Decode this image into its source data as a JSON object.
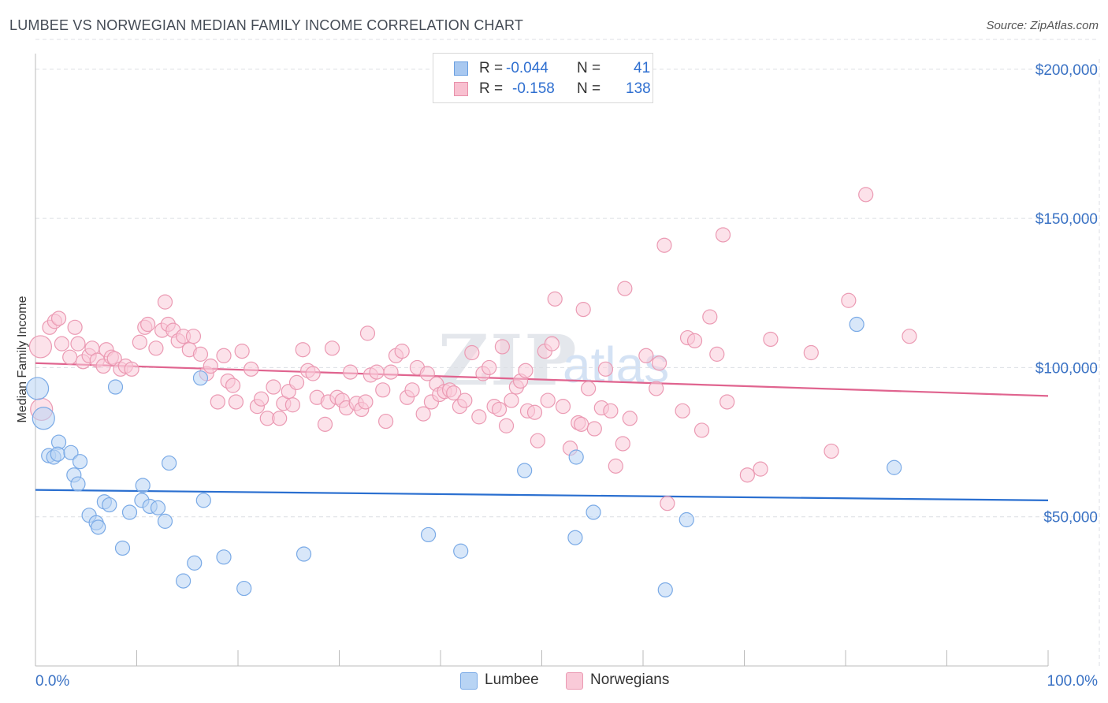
{
  "title": "LUMBEE VS NORWEGIAN MEDIAN FAMILY INCOME CORRELATION CHART",
  "source": "Source: ZipAtlas.com",
  "watermark": {
    "zip": "ZIP",
    "atlas": "atlas"
  },
  "legend": {
    "rows": [
      {
        "r_label": "R =",
        "r_value": "-0.044",
        "n_label": "N =",
        "n_value": "41",
        "color": "#a8c8f0",
        "border": "#6a9fe0"
      },
      {
        "r_label": "R =",
        "r_value": "-0.158",
        "n_label": "N =",
        "n_value": "138",
        "color": "#f8c0d0",
        "border": "#e890aa"
      }
    ]
  },
  "bottom_legend": [
    {
      "label": "Lumbee",
      "color": "#b8d4f4",
      "border": "#7aaae6"
    },
    {
      "label": "Norwegians",
      "color": "#f9cad8",
      "border": "#eb9ab3"
    }
  ],
  "chart_data": {
    "type": "scatter",
    "title": "LUMBEE VS NORWEGIAN MEDIAN FAMILY INCOME CORRELATION CHART",
    "xlabel": "",
    "ylabel": "Median Family Income",
    "xlim": [
      0,
      100
    ],
    "ylim": [
      0,
      210000
    ],
    "x_tick_labels": [
      "0.0%",
      "100.0%"
    ],
    "y_ticks": [
      50000,
      100000,
      150000,
      200000
    ],
    "y_tick_labels": [
      "$50,000",
      "$100,000",
      "$150,000",
      "$200,000"
    ],
    "grid": true,
    "legend_position": "top-center",
    "series": [
      {
        "name": "Lumbee",
        "color": "#7aaae6",
        "fill": "#b8d4f4",
        "trend": [
          [
            0,
            59000
          ],
          [
            100,
            55500
          ]
        ],
        "points": [
          [
            0.2,
            93000
          ],
          [
            0.8,
            83000
          ],
          [
            1.3,
            70500
          ],
          [
            1.8,
            70000
          ],
          [
            2.3,
            75000
          ],
          [
            2.2,
            71000
          ],
          [
            3.5,
            71500
          ],
          [
            3.8,
            64000
          ],
          [
            4.4,
            68500
          ],
          [
            4.2,
            61000
          ],
          [
            5.3,
            50500
          ],
          [
            6.0,
            48000
          ],
          [
            6.2,
            46500
          ],
          [
            6.8,
            55000
          ],
          [
            7.3,
            54000
          ],
          [
            7.9,
            93500
          ],
          [
            8.6,
            39500
          ],
          [
            9.3,
            51500
          ],
          [
            10.6,
            60500
          ],
          [
            10.5,
            55500
          ],
          [
            11.3,
            53500
          ],
          [
            12.1,
            53000
          ],
          [
            12.8,
            48500
          ],
          [
            13.2,
            68000
          ],
          [
            14.6,
            28500
          ],
          [
            15.7,
            34500
          ],
          [
            16.3,
            96500
          ],
          [
            16.6,
            55500
          ],
          [
            18.6,
            36500
          ],
          [
            20.6,
            26000
          ],
          [
            26.5,
            37500
          ],
          [
            38.8,
            44000
          ],
          [
            42.0,
            38500
          ],
          [
            48.3,
            65500
          ],
          [
            53.4,
            70000
          ],
          [
            55.1,
            51500
          ],
          [
            53.3,
            43000
          ],
          [
            62.2,
            25500
          ],
          [
            64.3,
            49000
          ],
          [
            81.1,
            114500
          ],
          [
            84.8,
            66500
          ]
        ]
      },
      {
        "name": "Norwegians",
        "color": "#eb9ab3",
        "fill": "#f9cad8",
        "trend": [
          [
            0,
            101500
          ],
          [
            100,
            90500
          ]
        ],
        "points": [
          [
            0.5,
            107000
          ],
          [
            0.6,
            86000
          ],
          [
            1.4,
            113500
          ],
          [
            1.9,
            115500
          ],
          [
            2.3,
            116500
          ],
          [
            2.6,
            108000
          ],
          [
            3.4,
            103500
          ],
          [
            3.9,
            113500
          ],
          [
            4.2,
            108000
          ],
          [
            4.7,
            102000
          ],
          [
            5.3,
            104000
          ],
          [
            5.6,
            106500
          ],
          [
            6.1,
            102500
          ],
          [
            6.7,
            100500
          ],
          [
            7.0,
            106000
          ],
          [
            7.5,
            103500
          ],
          [
            7.8,
            103000
          ],
          [
            8.4,
            99500
          ],
          [
            8.9,
            100500
          ],
          [
            9.5,
            99500
          ],
          [
            10.3,
            108500
          ],
          [
            10.8,
            113500
          ],
          [
            11.1,
            114500
          ],
          [
            11.9,
            106500
          ],
          [
            12.5,
            112500
          ],
          [
            12.8,
            122000
          ],
          [
            13.1,
            114500
          ],
          [
            13.6,
            112500
          ],
          [
            14.1,
            109000
          ],
          [
            14.6,
            110500
          ],
          [
            15.2,
            106000
          ],
          [
            15.6,
            110500
          ],
          [
            16.3,
            104500
          ],
          [
            16.9,
            98000
          ],
          [
            17.3,
            100500
          ],
          [
            18.0,
            88500
          ],
          [
            18.6,
            104000
          ],
          [
            19.0,
            95500
          ],
          [
            19.5,
            94000
          ],
          [
            19.8,
            88500
          ],
          [
            20.4,
            105500
          ],
          [
            21.3,
            99500
          ],
          [
            21.9,
            87000
          ],
          [
            22.3,
            89500
          ],
          [
            22.9,
            83000
          ],
          [
            23.5,
            93500
          ],
          [
            24.1,
            83000
          ],
          [
            24.5,
            88000
          ],
          [
            25.0,
            92000
          ],
          [
            25.4,
            87500
          ],
          [
            25.8,
            95000
          ],
          [
            26.4,
            106000
          ],
          [
            26.9,
            99000
          ],
          [
            27.4,
            98000
          ],
          [
            27.8,
            90000
          ],
          [
            28.6,
            81000
          ],
          [
            28.9,
            88500
          ],
          [
            29.3,
            106500
          ],
          [
            29.8,
            90000
          ],
          [
            30.3,
            89000
          ],
          [
            30.7,
            86500
          ],
          [
            31.1,
            98500
          ],
          [
            31.7,
            88000
          ],
          [
            32.2,
            86000
          ],
          [
            32.6,
            88500
          ],
          [
            32.8,
            111500
          ],
          [
            33.1,
            97500
          ],
          [
            33.7,
            98500
          ],
          [
            34.3,
            92500
          ],
          [
            34.6,
            82000
          ],
          [
            35.1,
            98500
          ],
          [
            35.6,
            104000
          ],
          [
            36.2,
            105500
          ],
          [
            36.7,
            90000
          ],
          [
            37.2,
            92500
          ],
          [
            37.7,
            100000
          ],
          [
            38.3,
            84500
          ],
          [
            38.7,
            98000
          ],
          [
            39.1,
            88500
          ],
          [
            39.6,
            94500
          ],
          [
            39.9,
            91000
          ],
          [
            40.4,
            92000
          ],
          [
            40.9,
            92500
          ],
          [
            41.3,
            91500
          ],
          [
            41.9,
            87000
          ],
          [
            42.4,
            89000
          ],
          [
            43.1,
            105000
          ],
          [
            43.8,
            83500
          ],
          [
            44.2,
            98000
          ],
          [
            44.8,
            100000
          ],
          [
            45.3,
            87000
          ],
          [
            45.8,
            86000
          ],
          [
            46.1,
            107000
          ],
          [
            46.5,
            80500
          ],
          [
            47.0,
            89000
          ],
          [
            47.5,
            93500
          ],
          [
            47.9,
            95500
          ],
          [
            48.4,
            99000
          ],
          [
            48.6,
            85500
          ],
          [
            49.3,
            85000
          ],
          [
            49.6,
            75500
          ],
          [
            50.3,
            105500
          ],
          [
            50.6,
            89000
          ],
          [
            51.0,
            108000
          ],
          [
            51.3,
            123000
          ],
          [
            52.1,
            87000
          ],
          [
            52.8,
            73000
          ],
          [
            53.6,
            81500
          ],
          [
            53.9,
            81000
          ],
          [
            54.1,
            119500
          ],
          [
            54.6,
            93000
          ],
          [
            55.2,
            79500
          ],
          [
            55.9,
            86500
          ],
          [
            56.3,
            99500
          ],
          [
            56.8,
            85500
          ],
          [
            57.3,
            67000
          ],
          [
            58.0,
            74500
          ],
          [
            58.2,
            126500
          ],
          [
            58.7,
            83000
          ],
          [
            60.3,
            104000
          ],
          [
            61.3,
            93000
          ],
          [
            61.6,
            101500
          ],
          [
            62.1,
            141000
          ],
          [
            62.4,
            54500
          ],
          [
            63.9,
            85500
          ],
          [
            64.4,
            110000
          ],
          [
            65.1,
            109000
          ],
          [
            65.8,
            79000
          ],
          [
            66.6,
            117000
          ],
          [
            67.3,
            104500
          ],
          [
            67.9,
            144500
          ],
          [
            68.3,
            88500
          ],
          [
            70.3,
            64000
          ],
          [
            71.6,
            66000
          ],
          [
            72.6,
            109500
          ],
          [
            76.6,
            105000
          ],
          [
            78.6,
            72000
          ],
          [
            80.3,
            122500
          ],
          [
            82.0,
            158000
          ],
          [
            86.3,
            110500
          ]
        ]
      }
    ]
  }
}
